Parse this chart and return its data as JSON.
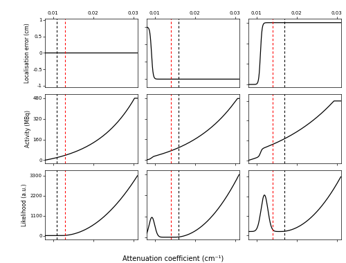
{
  "xlim": [
    0.008,
    0.031
  ],
  "x_ticks": [
    0.01,
    0.02,
    0.03
  ],
  "xlabel": "Attenuation coefficient (cm⁻¹)",
  "ylabel_row0": "Localisation error (cm)",
  "ylabel_row1": "Activity (MBq)",
  "ylabel_row2": "Likelihood (a.u.)",
  "col0_black_vline": 0.011,
  "col0_red_vline": 0.013,
  "col1_red_vline": 0.014,
  "col1_black_vline": 0.016,
  "col2_red_vline": 0.014,
  "col2_black_vline": 0.017,
  "col0_row0_yticks": [
    1,
    0.5,
    0,
    -0.5,
    -1
  ],
  "col0_row0_ylim": [
    -1.05,
    1.05
  ],
  "col1_row0_yticks": [
    27.74,
    27.01,
    26.28,
    25.55
  ],
  "col1_row0_ylim": [
    25.2,
    28.1
  ],
  "col2_row0_yticks": [
    48.5,
    38.8,
    29.1,
    19.4
  ],
  "col2_row0_ylim": [
    18.0,
    50.5
  ],
  "col0_row1_yticks": [
    480,
    320,
    160,
    0
  ],
  "col0_row1_ylim": [
    -25,
    510
  ],
  "col1_row1_yticks": [
    267,
    178,
    89,
    0
  ],
  "col1_row1_ylim": [
    -15,
    285
  ],
  "col2_row1_yticks": [
    99,
    66,
    33,
    0
  ],
  "col2_row1_ylim": [
    -5,
    110
  ],
  "col0_row2_yticks": [
    3300,
    2200,
    1100,
    0
  ],
  "col0_row2_ylim": [
    -200,
    3600
  ],
  "col1_row2_yticks": [
    11700,
    7800,
    3900,
    0
  ],
  "col1_row2_ylim": [
    -400,
    12500
  ],
  "col2_row2_yticks": [
    7500,
    6000,
    4500,
    3000
  ],
  "col2_row2_ylim": [
    2700,
    8000
  ],
  "line_color": "black",
  "vline_black_color": "black",
  "vline_red_color": "red",
  "background": "white"
}
